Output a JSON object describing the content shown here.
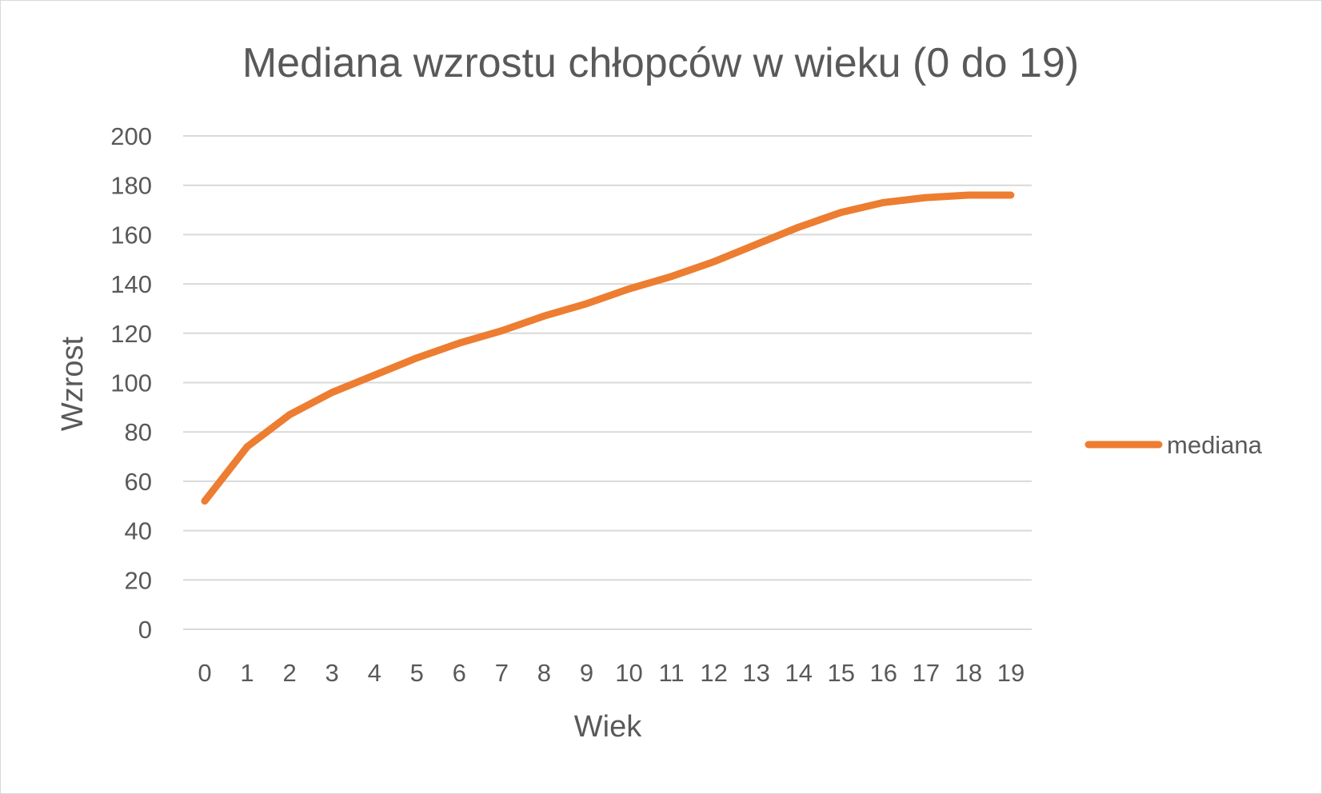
{
  "chart_data": {
    "type": "line",
    "title": "Mediana wzrostu chłopców w wieku (0 do 19)",
    "xlabel": "Wiek",
    "ylabel": "Wzrost",
    "x": [
      0,
      1,
      2,
      3,
      4,
      5,
      6,
      7,
      8,
      9,
      10,
      11,
      12,
      13,
      14,
      15,
      16,
      17,
      18,
      19
    ],
    "xtick_labels": [
      "0",
      "1",
      "2",
      "3",
      "4",
      "5",
      "6",
      "7",
      "8",
      "9",
      "10",
      "11",
      "12",
      "13",
      "14",
      "15",
      "16",
      "17",
      "18",
      "19"
    ],
    "ylim": [
      0,
      200
    ],
    "ytick_labels": [
      "0",
      "20",
      "40",
      "60",
      "80",
      "100",
      "120",
      "140",
      "160",
      "180",
      "200"
    ],
    "ytick_values": [
      0,
      20,
      40,
      60,
      80,
      100,
      120,
      140,
      160,
      180,
      200
    ],
    "grid": true,
    "legend_position": "right",
    "series": [
      {
        "name": "mediana",
        "color": "#ED7D31",
        "values": [
          52,
          74,
          87,
          96,
          103,
          110,
          116,
          121,
          127,
          132,
          138,
          143,
          149,
          156,
          163,
          169,
          173,
          175,
          176,
          176
        ]
      }
    ]
  }
}
